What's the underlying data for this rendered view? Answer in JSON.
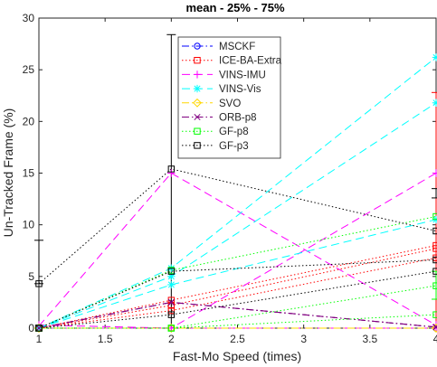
{
  "chart_data": {
    "type": "line",
    "title": "mean - 25% - 75%",
    "xlabel": "Fast-Mo Speed (times)",
    "ylabel": "Un-Tracked Frame (%)",
    "xlim": [
      1,
      4
    ],
    "ylim": [
      0,
      30
    ],
    "xticks": [
      1,
      1.5,
      2,
      2.5,
      3,
      3.5,
      4
    ],
    "xtick_labels": [
      "1",
      "1.5",
      "2",
      "2.5",
      "3",
      "3.5",
      "4"
    ],
    "yticks": [
      0,
      5,
      10,
      15,
      20,
      25,
      30
    ],
    "ytick_labels": [
      "0",
      "5",
      "10",
      "15",
      "20",
      "25",
      "30"
    ],
    "grid": false,
    "legend_position": "top-center",
    "series": [
      {
        "name": "MSCKF",
        "color": "#0000ff",
        "linestyle": "dashdot",
        "marker": "circle",
        "x": [
          1,
          2,
          4
        ],
        "bands": [
          [
            0.0,
            0.0,
            0.0
          ],
          [
            0.0,
            0.0,
            0.0
          ],
          [
            0.0,
            0.0,
            0.0
          ]
        ]
      },
      {
        "name": "ICE-BA-Extra",
        "color": "#ff0000",
        "linestyle": "dotted",
        "marker": "square",
        "x": [
          1,
          2,
          4
        ],
        "bands": [
          [
            0.0,
            1.7,
            6.8
          ],
          [
            0.0,
            2.2,
            7.7
          ],
          [
            0.0,
            2.7,
            8.0
          ]
        ]
      },
      {
        "name": "VINS-IMU",
        "color": "#ff00ff",
        "linestyle": "dashed",
        "marker": "plus",
        "x": [
          1,
          2,
          4
        ],
        "bands": [
          [
            0.0,
            0.0,
            0.0
          ],
          [
            0.2,
            15.0,
            0.3
          ],
          [
            0.3,
            0.0,
            15.0
          ]
        ]
      },
      {
        "name": "VINS-Vis",
        "color": "#00ffff",
        "linestyle": "dashed",
        "marker": "asterisk",
        "x": [
          1,
          2,
          4
        ],
        "bands": [
          [
            0.0,
            4.2,
            10.5
          ],
          [
            0.0,
            5.0,
            21.8
          ],
          [
            0.0,
            5.8,
            26.2
          ]
        ]
      },
      {
        "name": "SVO",
        "color": "#ffd700",
        "linestyle": "dashdot",
        "marker": "diamond",
        "x": [
          1,
          2,
          4
        ],
        "bands": [
          [
            0.0,
            0.0,
            0.0
          ],
          [
            0.0,
            0.0,
            0.0
          ],
          [
            0.0,
            0.0,
            0.0
          ]
        ]
      },
      {
        "name": "ORB-p8",
        "color": "#800080",
        "linestyle": "dashdot",
        "marker": "x",
        "x": [
          1,
          2,
          4
        ],
        "bands": [
          [
            0.0,
            2.5,
            0.1
          ],
          [
            0.0,
            2.5,
            0.1
          ],
          [
            0.0,
            2.5,
            0.1
          ]
        ]
      },
      {
        "name": "GF-p8",
        "color": "#00ff00",
        "linestyle": "dotted",
        "marker": "square",
        "x": [
          1,
          2,
          4
        ],
        "bands": [
          [
            0.0,
            0.0,
            1.3
          ],
          [
            0.0,
            0.0,
            4.1
          ],
          [
            0.0,
            5.6,
            10.8
          ]
        ]
      },
      {
        "name": "GF-p3",
        "color": "#000000",
        "linestyle": "dotted",
        "marker": "square",
        "x": [
          1,
          2,
          4
        ],
        "bands": [
          [
            0.0,
            1.3,
            5.5
          ],
          [
            0.0,
            5.5,
            6.6
          ],
          [
            4.3,
            15.4,
            9.4
          ]
        ]
      }
    ],
    "error_bars": [
      {
        "x": 2,
        "low": 0.0,
        "high": 28.4,
        "color": "#000000"
      },
      {
        "x": 4,
        "low": 0.0,
        "high": 22.8,
        "color": "#ff0000"
      },
      {
        "x": 4,
        "low": 12.6,
        "high": 13.5,
        "color": "#000000"
      },
      {
        "x": 4,
        "low": 2.8,
        "high": 5.5,
        "color": "#00ff00"
      },
      {
        "x": 1,
        "low": 4.3,
        "high": 8.5,
        "color": "#000000"
      }
    ]
  }
}
